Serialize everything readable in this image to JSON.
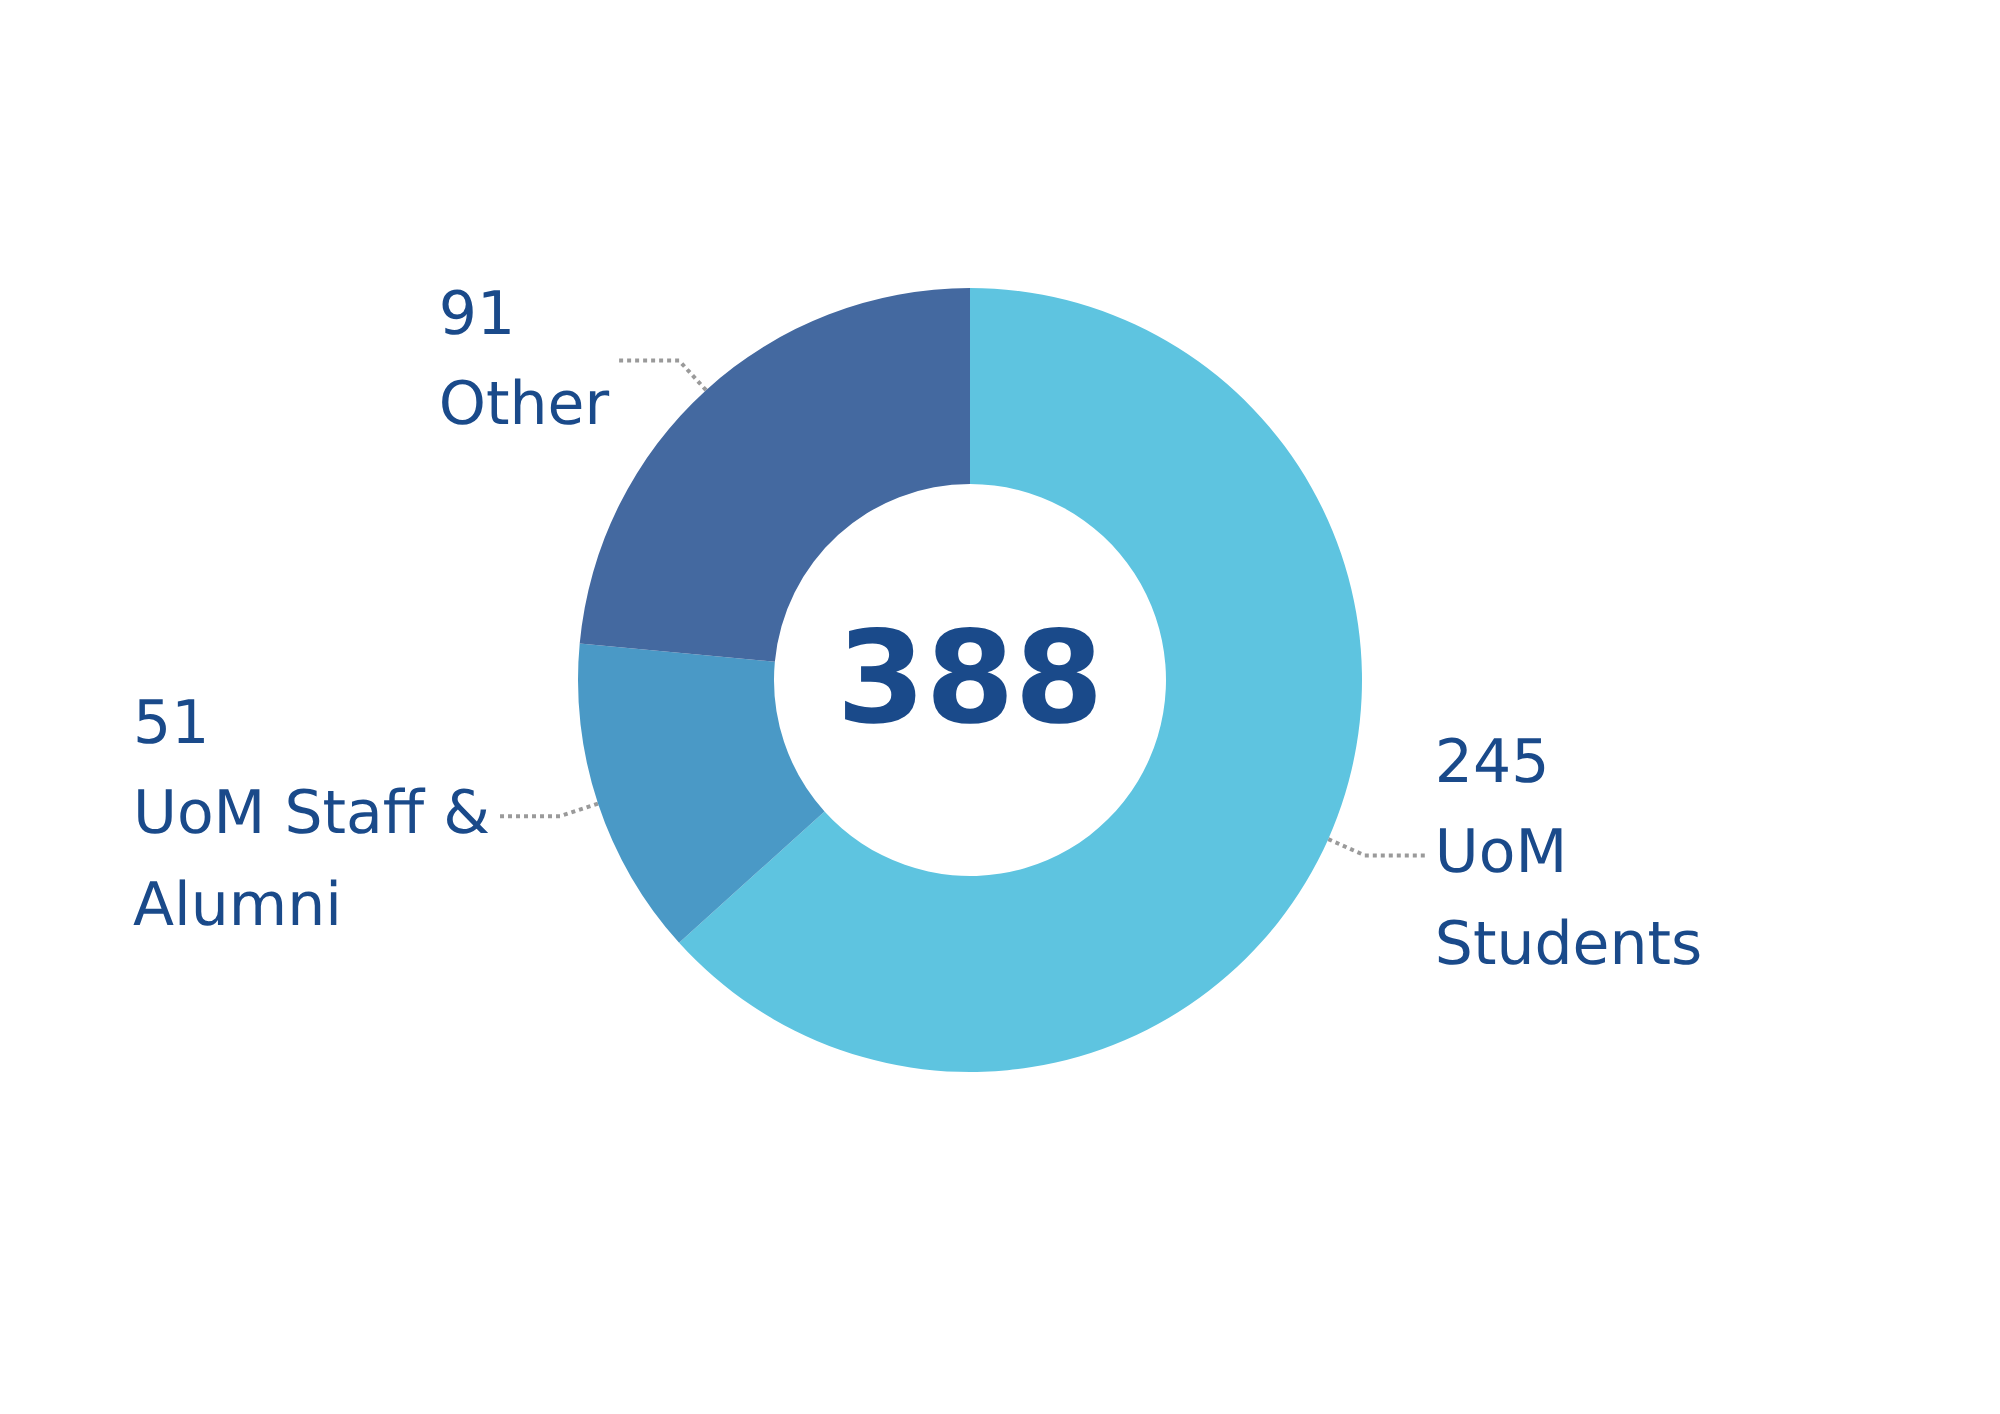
{
  "chart_data": {
    "type": "donut",
    "categories": [
      "UoM Students",
      "UoM Staff & Alumni",
      "Other"
    ],
    "values": [
      245,
      51,
      91
    ],
    "colors": [
      "#5ec4e0",
      "#4a99c6",
      "#4469a0"
    ],
    "data_labels": true,
    "legend": false,
    "annotations": [
      "388"
    ]
  }
}
